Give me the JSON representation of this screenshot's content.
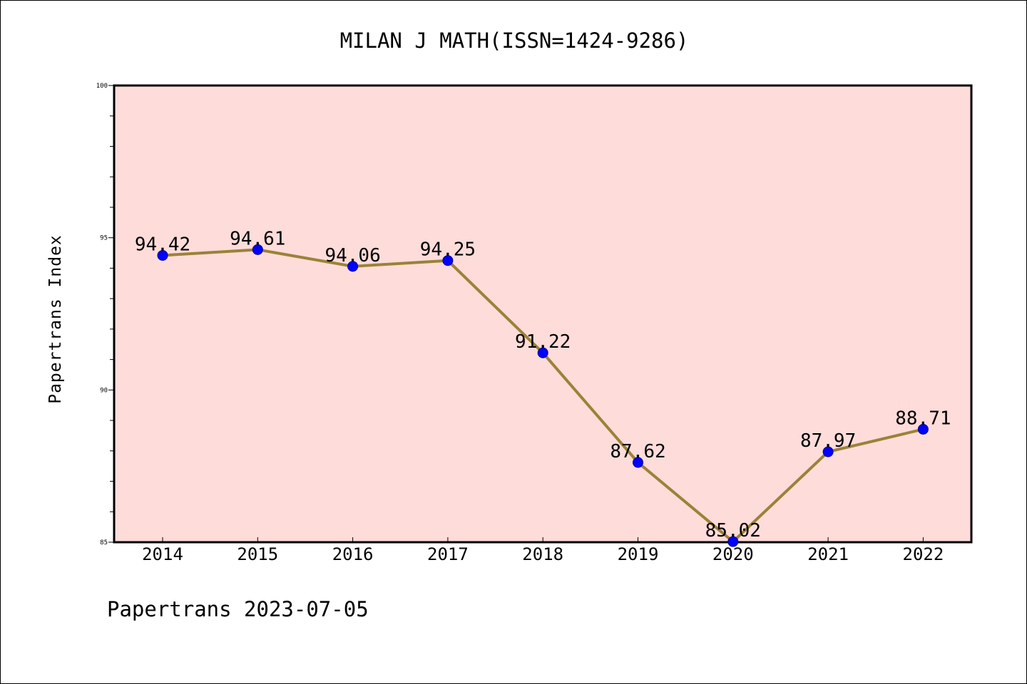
{
  "chart_data": {
    "type": "line",
    "title": "MILAN J MATH(ISSN=1424-9286)",
    "ylabel": "Papertrans Index",
    "xlabel": "",
    "footer": "Papertrans 2023-07-05",
    "categories": [
      "2014",
      "2015",
      "2016",
      "2017",
      "2018",
      "2019",
      "2020",
      "2021",
      "2022"
    ],
    "series": [
      {
        "values": [
          94.42,
          94.61,
          94.06,
          94.25,
          91.22,
          87.62,
          85.02,
          87.97,
          88.71
        ],
        "labels": [
          "94.42",
          "94.61",
          "94.06",
          "94.25",
          "91.22",
          "87.62",
          "85.02",
          "87.97",
          "88.71"
        ]
      }
    ],
    "ylim": [
      85,
      100
    ],
    "yticks": [
      85,
      90,
      95,
      100
    ],
    "grid": false,
    "legend": "none",
    "colors": {
      "plot_background": "#fddcda",
      "line": "#9b8238",
      "marker": "#0000ff",
      "axis": "#000000"
    }
  }
}
